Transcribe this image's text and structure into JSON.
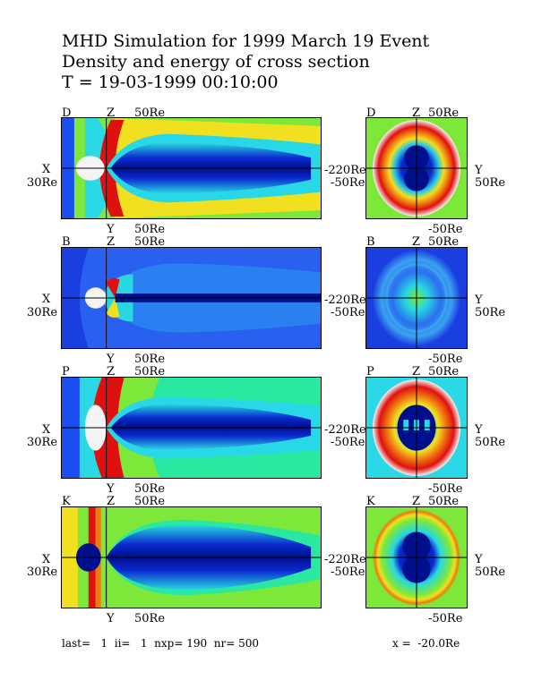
{
  "header": {
    "title_line1": "MHD Simulation for 1999 March 19 Event",
    "title_line2": "Density and energy of cross section",
    "time_line": "T = 19-03-1999  00:10:00"
  },
  "panels": [
    {
      "letter": "D",
      "z_label": "Z",
      "top_extent": "50Re",
      "x_axis": "X",
      "x_extent": "30Re",
      "far_x": "-220Re",
      "far_z": "-50Re",
      "y_label": "Y",
      "y_extent": "50Re",
      "bottom_extent": "50Re",
      "bottom_y_label": "Y",
      "cs_bottom": "-50Re"
    },
    {
      "letter": "B",
      "z_label": "Z",
      "top_extent": "50Re",
      "x_axis": "X",
      "x_extent": "30Re",
      "far_x": "-220Re",
      "far_z": "-50Re",
      "y_label": "Y",
      "y_extent": "50Re",
      "bottom_extent": "50Re",
      "bottom_y_label": "Y",
      "cs_bottom": "-50Re"
    },
    {
      "letter": "P",
      "z_label": "Z",
      "top_extent": "50Re",
      "x_axis": "X",
      "x_extent": "30Re",
      "far_x": "-220Re",
      "far_z": "-50Re",
      "y_label": "Y",
      "y_extent": "50Re",
      "bottom_extent": "50Re",
      "bottom_y_label": "Y",
      "cs_bottom": "-50Re"
    },
    {
      "letter": "K",
      "z_label": "Z",
      "top_extent": "50Re",
      "x_axis": "X",
      "x_extent": "30Re",
      "far_x": "-220Re",
      "far_z": "-50Re",
      "y_label": "Y",
      "y_extent": "50Re",
      "bottom_extent": "50Re",
      "bottom_y_label": "Y",
      "cs_bottom": "-50Re"
    }
  ],
  "footer": {
    "params": "last=   1  ii=   1  nxp= 190  nr= 500",
    "x_position": "x =  -20.0Re"
  },
  "colors": {
    "background_field": "#2be8a0",
    "deep_blue": "#00108c",
    "blue": "#1a4ef0",
    "cyan": "#2ad8e6",
    "green": "#7ee83a",
    "yellow": "#f0e020",
    "orange": "#f07a10",
    "red": "#e01010"
  }
}
